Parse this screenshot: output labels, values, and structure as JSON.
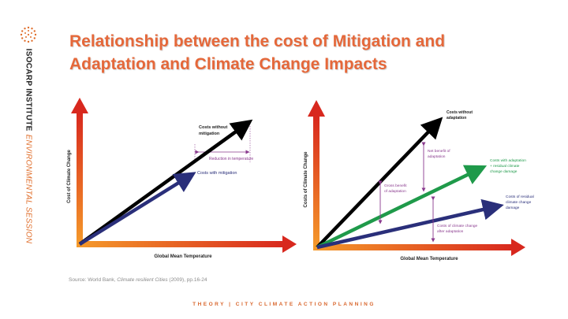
{
  "sidebar": {
    "institute": "ISOCARP INSTITUTE",
    "session": "ENVIRONMENTAL SESSION"
  },
  "title": {
    "line1": "Relationship between the cost of Mitigation and",
    "line2": "Adaptation and Climate Change Impacts"
  },
  "diagram_left": {
    "y_axis": "Cost of Climate Change",
    "x_axis": "Global Mean Temperature",
    "label_without_1": "Costs without",
    "label_without_2": "mitigation",
    "label_reduction": "Reduction in temperature",
    "label_with": "Costs with mitigation"
  },
  "diagram_right": {
    "y_axis": "Costs of Climate Change",
    "x_axis": "Global Mean Temperature",
    "label_without_1": "Costs without",
    "label_without_2": "adaptation",
    "label_net_1": "Net benefit of",
    "label_net_2": "adaptation",
    "label_gross_1": "Gross benefit",
    "label_gross_2": "of adaptation",
    "label_adapt_1": "Costs with adaptation",
    "label_adapt_2": "+ residual climate",
    "label_adapt_3": "change damage",
    "label_residual_1": "Costs of residual",
    "label_residual_2": "climate change",
    "label_residual_3": "damage",
    "label_after_1": "Costs of climate change",
    "label_after_2": "after adaptation"
  },
  "source": {
    "prefix": "Source: World Bank, ",
    "title": "Climate resilient Cities",
    "suffix": " (2009), pp.16-24"
  },
  "footer": "THEORY | CITY CLIMATE ACTION PLANNING",
  "colors": {
    "accent": "#e5683a",
    "arrow_black": "#000000",
    "arrow_navy": "#2a2f7a",
    "arrow_green": "#1f9a4a",
    "annotation_purple": "#8a3a8e"
  }
}
